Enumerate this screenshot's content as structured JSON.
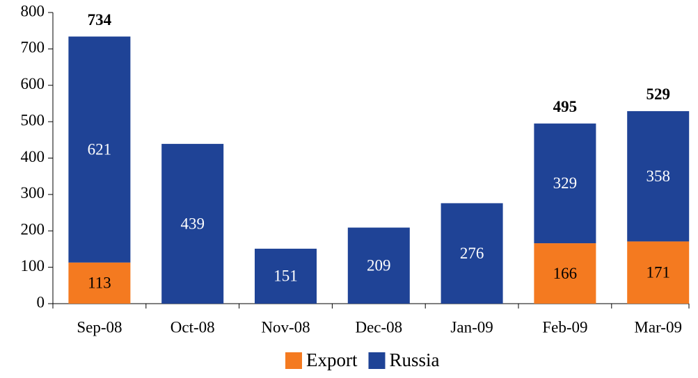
{
  "chart_data": {
    "type": "stacked-bar",
    "categories": [
      "Sep-08",
      "Oct-08",
      "Nov-08",
      "Dec-08",
      "Jan-09",
      "Feb-09",
      "Mar-09"
    ],
    "series": [
      {
        "name": "Export",
        "color": "#f47a20",
        "values": [
          113,
          null,
          null,
          null,
          null,
          166,
          171
        ]
      },
      {
        "name": "Russia",
        "color": "#1f4396",
        "values": [
          621,
          439,
          151,
          209,
          276,
          329,
          358
        ]
      }
    ],
    "totals": [
      734,
      null,
      null,
      null,
      null,
      495,
      529
    ],
    "ylim": [
      0,
      800
    ],
    "yticks": [
      0,
      100,
      200,
      300,
      400,
      500,
      600,
      700,
      800
    ],
    "legend": "bottom"
  }
}
